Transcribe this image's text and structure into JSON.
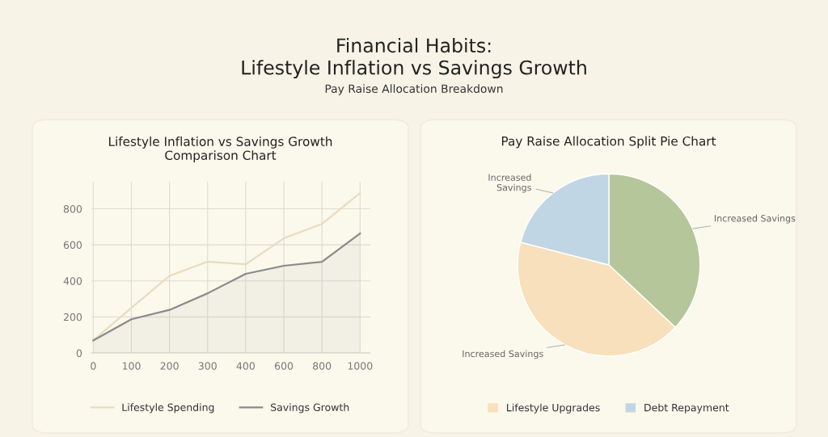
{
  "chart_data": [
    {
      "type": "other",
      "title": "Financial Habits:\nLifestyle Inflation vs Savings Growth",
      "subtitle": "Pay Raise Allocation Breakdown"
    },
    {
      "type": "line",
      "title": "Lifestyle Inflation vs Savings Growth\nComparison Chart",
      "categories": [
        "0",
        "100",
        "200",
        "300",
        "400",
        "600",
        "800",
        "1000"
      ],
      "series": [
        {
          "name": "Lifestyle Spending",
          "color": "#e8dcbf",
          "values": [
            70,
            250,
            428,
            507,
            492,
            636,
            716,
            887
          ]
        },
        {
          "name": "Savings Growth",
          "type": "area",
          "color": "#8a8a8a",
          "values": [
            70,
            187,
            239,
            331,
            439,
            484,
            506,
            663
          ]
        }
      ],
      "ylim": [
        0,
        950
      ],
      "yticks": [
        0,
        200,
        400,
        600,
        800
      ],
      "grid": true,
      "legend": "bottom"
    },
    {
      "type": "pie",
      "title": "Pay Raise Allocation Split Pie Chart",
      "categories": [
        null,
        "Lifestyle Upgrades",
        "Debt Repayment"
      ],
      "values": [
        37,
        42,
        21
      ],
      "colors": [
        "#b6c69b",
        "#f7e0bb",
        "#c1d6e4"
      ],
      "value_labels": [
        "Increased Savings",
        "Increased Savings",
        "Increased\nSavings"
      ],
      "legend": "bottom"
    }
  ]
}
